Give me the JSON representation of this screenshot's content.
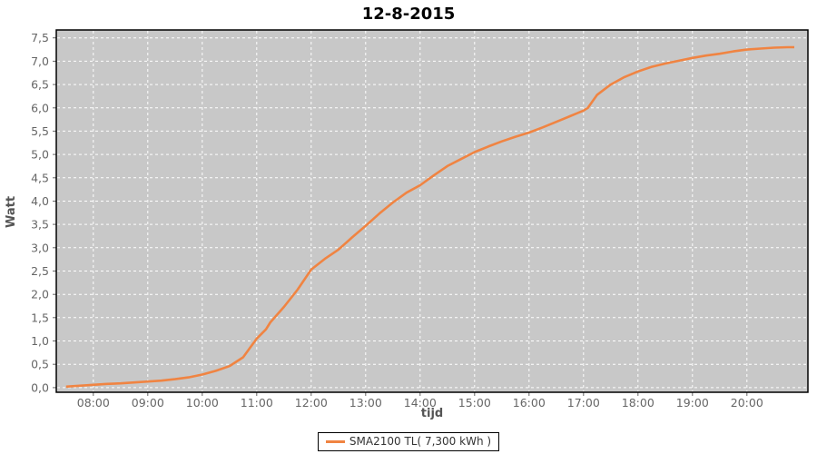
{
  "chart_data": {
    "type": "line",
    "title": "12-8-2015",
    "xlabel": "tijd",
    "ylabel": "Watt",
    "grid": true,
    "legend_position": "bottom-center",
    "xlim_hours": [
      7.32,
      21.12
    ],
    "ylim": [
      -0.1,
      7.67
    ],
    "x_ticks": [
      {
        "hour": 8,
        "label": "08:00"
      },
      {
        "hour": 9,
        "label": "09:00"
      },
      {
        "hour": 10,
        "label": "10:00"
      },
      {
        "hour": 11,
        "label": "11:00"
      },
      {
        "hour": 12,
        "label": "12:00"
      },
      {
        "hour": 13,
        "label": "13:00"
      },
      {
        "hour": 14,
        "label": "14:00"
      },
      {
        "hour": 15,
        "label": "15:00"
      },
      {
        "hour": 16,
        "label": "16:00"
      },
      {
        "hour": 17,
        "label": "17:00"
      },
      {
        "hour": 18,
        "label": "18:00"
      },
      {
        "hour": 19,
        "label": "19:00"
      },
      {
        "hour": 20,
        "label": "20:00"
      }
    ],
    "y_ticks": [
      {
        "value": 0.0,
        "label": "0,0"
      },
      {
        "value": 0.5,
        "label": "0,5"
      },
      {
        "value": 1.0,
        "label": "1,0"
      },
      {
        "value": 1.5,
        "label": "1,5"
      },
      {
        "value": 2.0,
        "label": "2,0"
      },
      {
        "value": 2.5,
        "label": "2,5"
      },
      {
        "value": 3.0,
        "label": "3,0"
      },
      {
        "value": 3.5,
        "label": "3,5"
      },
      {
        "value": 4.0,
        "label": "4,0"
      },
      {
        "value": 4.5,
        "label": "4,5"
      },
      {
        "value": 5.0,
        "label": "5,0"
      },
      {
        "value": 5.5,
        "label": "5,5"
      },
      {
        "value": 6.0,
        "label": "6,0"
      },
      {
        "value": 6.5,
        "label": "6,5"
      },
      {
        "value": 7.0,
        "label": "7,0"
      },
      {
        "value": 7.5,
        "label": "7,5"
      }
    ],
    "series": [
      {
        "name": "SMA2100 TL( 7,300 kWh )",
        "color": "#F08442",
        "points": [
          [
            7.5,
            0.02
          ],
          [
            7.75,
            0.04
          ],
          [
            8.0,
            0.06
          ],
          [
            8.25,
            0.08
          ],
          [
            8.5,
            0.09
          ],
          [
            8.75,
            0.11
          ],
          [
            9.0,
            0.13
          ],
          [
            9.25,
            0.15
          ],
          [
            9.5,
            0.18
          ],
          [
            9.75,
            0.22
          ],
          [
            10.0,
            0.28
          ],
          [
            10.25,
            0.36
          ],
          [
            10.5,
            0.46
          ],
          [
            10.75,
            0.65
          ],
          [
            11.0,
            1.05
          ],
          [
            11.17,
            1.25
          ],
          [
            11.25,
            1.4
          ],
          [
            11.5,
            1.73
          ],
          [
            11.75,
            2.1
          ],
          [
            12.0,
            2.53
          ],
          [
            12.25,
            2.76
          ],
          [
            12.5,
            2.96
          ],
          [
            12.75,
            3.22
          ],
          [
            13.0,
            3.47
          ],
          [
            13.25,
            3.73
          ],
          [
            13.5,
            3.97
          ],
          [
            13.75,
            4.18
          ],
          [
            14.0,
            4.34
          ],
          [
            14.25,
            4.55
          ],
          [
            14.5,
            4.75
          ],
          [
            14.75,
            4.9
          ],
          [
            15.0,
            5.05
          ],
          [
            15.25,
            5.17
          ],
          [
            15.5,
            5.28
          ],
          [
            15.75,
            5.38
          ],
          [
            16.0,
            5.47
          ],
          [
            16.25,
            5.58
          ],
          [
            16.5,
            5.7
          ],
          [
            16.75,
            5.82
          ],
          [
            17.0,
            5.94
          ],
          [
            17.08,
            6.0
          ],
          [
            17.25,
            6.28
          ],
          [
            17.5,
            6.5
          ],
          [
            17.75,
            6.66
          ],
          [
            18.0,
            6.78
          ],
          [
            18.25,
            6.88
          ],
          [
            18.5,
            6.95
          ],
          [
            18.75,
            7.01
          ],
          [
            19.0,
            7.07
          ],
          [
            19.25,
            7.12
          ],
          [
            19.5,
            7.16
          ],
          [
            19.75,
            7.21
          ],
          [
            20.0,
            7.25
          ],
          [
            20.25,
            7.27
          ],
          [
            20.5,
            7.29
          ],
          [
            20.75,
            7.3
          ],
          [
            20.87,
            7.3
          ]
        ]
      }
    ],
    "colors": {
      "series": "#F08442",
      "plot_background": "#C8C8C8",
      "gridline": "#FFFFFF",
      "axis_text": "#666666",
      "axis_title_text": "#555555",
      "title_text": "#000000",
      "plot_border": "#000000"
    }
  }
}
